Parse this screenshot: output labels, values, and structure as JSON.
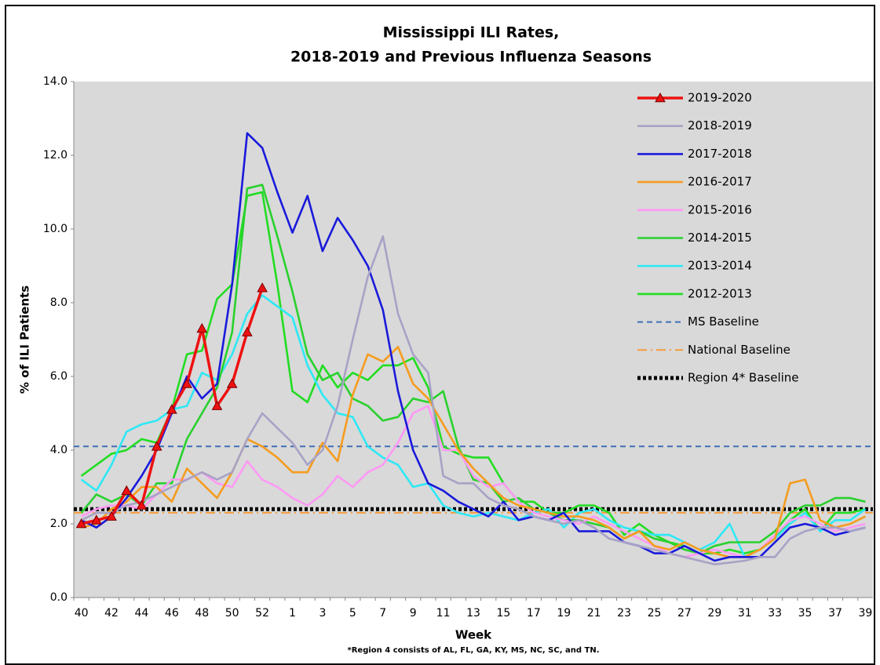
{
  "chart_data": {
    "type": "line",
    "title": [
      "Mississippi ILI Rates,",
      "2018-2019 and Previous Influenza Seasons"
    ],
    "xlabel": "Week",
    "ylabel": "% of ILI Patients",
    "footnote": "*Region 4 consists of AL, FL, GA, KY, MS, NC, SC, and TN.",
    "ylim": [
      0,
      14
    ],
    "yticks": [
      {
        "value": 0,
        "label": "0.0"
      },
      {
        "value": 2,
        "label": "2.0"
      },
      {
        "value": 4,
        "label": "4.0"
      },
      {
        "value": 6,
        "label": "6.0"
      },
      {
        "value": 8,
        "label": "8.0"
      },
      {
        "value": 10,
        "label": "10.0"
      },
      {
        "value": 12,
        "label": "12.0"
      },
      {
        "value": 14,
        "label": "14.0"
      }
    ],
    "grid": false,
    "legend": "top-right",
    "categories": [
      40,
      null,
      42,
      null,
      44,
      null,
      46,
      null,
      48,
      null,
      50,
      null,
      52,
      null,
      1,
      null,
      3,
      null,
      5,
      null,
      7,
      null,
      9,
      null,
      11,
      null,
      13,
      null,
      15,
      null,
      17,
      null,
      19,
      null,
      21,
      null,
      23,
      null,
      25,
      null,
      27,
      null,
      29,
      null,
      31,
      null,
      33,
      null,
      35,
      null,
      37,
      null,
      39
    ],
    "series": [
      {
        "name": "2019-2020",
        "color": "#ee1111",
        "marker": "triangle",
        "values": [
          2.0,
          2.1,
          2.2,
          2.9,
          2.5,
          4.1,
          5.1,
          5.8,
          7.3,
          5.2,
          5.8,
          7.2,
          8.4,
          null,
          null,
          null,
          null,
          null,
          null,
          null,
          null,
          null,
          null,
          null,
          null,
          null,
          null,
          null,
          null,
          null,
          null,
          null,
          null,
          null,
          null,
          null,
          null,
          null,
          null,
          null,
          null,
          null,
          null,
          null,
          null,
          null,
          null,
          null,
          null,
          null,
          null,
          null,
          null
        ]
      },
      {
        "name": "2018-2019",
        "color": "#a8a2c6",
        "values": [
          2.1,
          2.3,
          2.3,
          2.5,
          2.6,
          2.8,
          3.0,
          3.2,
          3.4,
          3.2,
          3.4,
          4.3,
          5.0,
          4.6,
          4.2,
          3.6,
          4.0,
          5.2,
          7.0,
          8.7,
          9.8,
          7.7,
          6.6,
          6.1,
          3.3,
          3.1,
          3.1,
          2.7,
          2.5,
          2.4,
          2.2,
          2.1,
          2.0,
          2.1,
          1.9,
          1.6,
          1.5,
          1.4,
          1.3,
          1.2,
          1.1,
          1.0,
          0.9,
          0.95,
          1.0,
          1.1,
          1.1,
          1.6,
          1.8,
          1.9,
          1.9,
          1.8,
          1.9
        ]
      },
      {
        "name": "2017-2018",
        "color": "#1a1adb",
        "values": [
          2.1,
          1.9,
          2.2,
          2.7,
          3.3,
          4.0,
          5.0,
          6.0,
          5.4,
          5.8,
          8.5,
          12.6,
          12.2,
          11.0,
          9.9,
          10.9,
          9.4,
          10.3,
          9.7,
          9.0,
          7.8,
          5.6,
          4.0,
          3.1,
          2.9,
          2.6,
          2.4,
          2.2,
          2.6,
          2.1,
          2.2,
          2.1,
          2.3,
          1.8,
          1.8,
          1.8,
          1.5,
          1.4,
          1.2,
          1.2,
          1.4,
          1.2,
          1.0,
          1.1,
          1.1,
          1.1,
          1.5,
          1.9,
          2.0,
          1.9,
          1.7,
          1.8,
          1.9
        ]
      },
      {
        "name": "2016-2017",
        "color": "#f59c1f",
        "values": [
          1.9,
          2.0,
          2.4,
          2.6,
          3.0,
          3.0,
          2.6,
          3.5,
          3.1,
          2.7,
          3.4,
          4.3,
          4.1,
          3.8,
          3.4,
          3.4,
          4.2,
          3.7,
          5.5,
          6.6,
          6.4,
          6.8,
          5.8,
          5.4,
          4.7,
          4.0,
          3.5,
          3.1,
          2.7,
          2.5,
          2.4,
          2.3,
          2.2,
          2.2,
          2.1,
          1.9,
          1.6,
          1.8,
          1.4,
          1.3,
          1.5,
          1.3,
          1.2,
          1.1,
          1.1,
          1.3,
          1.6,
          3.1,
          3.2,
          2.1,
          1.9,
          2.0,
          2.2
        ]
      },
      {
        "name": "2015-2016",
        "color": "#ff99f5",
        "values": [
          2.2,
          2.4,
          2.5,
          2.5,
          2.4,
          2.8,
          3.2,
          3.2,
          3.4,
          3.1,
          3.0,
          3.7,
          3.2,
          3.0,
          2.7,
          2.5,
          2.8,
          3.3,
          3.0,
          3.4,
          3.6,
          4.2,
          5.0,
          5.2,
          4.0,
          4.0,
          3.3,
          3.0,
          3.1,
          2.6,
          2.3,
          2.2,
          2.1,
          2.0,
          2.2,
          2.0,
          1.8,
          1.6,
          1.4,
          1.2,
          1.1,
          1.2,
          1.3,
          1.2,
          1.1,
          1.3,
          1.7,
          2.1,
          2.2,
          2.0,
          1.8,
          1.9,
          2.0
        ]
      },
      {
        "name": "2014-2015",
        "color": "#29d12e",
        "values": [
          2.3,
          2.8,
          2.6,
          2.8,
          2.5,
          3.1,
          3.1,
          4.3,
          5.0,
          5.7,
          7.2,
          11.1,
          11.2,
          9.8,
          8.3,
          6.6,
          5.9,
          6.1,
          5.4,
          5.2,
          4.8,
          4.9,
          5.4,
          5.3,
          5.6,
          4.1,
          3.2,
          3.1,
          2.6,
          2.7,
          2.4,
          2.3,
          2.1,
          2.1,
          2.0,
          1.9,
          1.6,
          1.8,
          1.6,
          1.5,
          1.3,
          1.2,
          1.4,
          1.5,
          1.5,
          1.5,
          1.8,
          2.3,
          2.5,
          2.5,
          2.7,
          2.7,
          2.6
        ]
      },
      {
        "name": "2013-2014",
        "color": "#2ee8f5",
        "values": [
          3.2,
          2.9,
          3.6,
          4.5,
          4.7,
          4.8,
          5.1,
          5.2,
          6.1,
          5.9,
          6.6,
          7.7,
          8.2,
          7.9,
          7.6,
          6.3,
          5.5,
          5.0,
          4.9,
          4.1,
          3.8,
          3.6,
          3.0,
          3.1,
          2.5,
          2.3,
          2.2,
          2.3,
          2.2,
          2.1,
          2.3,
          2.4,
          1.9,
          2.3,
          2.4,
          2.1,
          1.9,
          1.8,
          1.7,
          1.7,
          1.5,
          1.3,
          1.5,
          2.0,
          1.1,
          1.3,
          1.6,
          2.0,
          2.3,
          1.8,
          2.1,
          2.1,
          2.4
        ]
      },
      {
        "name": "2012-2013",
        "color": "#22dd22",
        "values": [
          3.3,
          3.6,
          3.9,
          4.0,
          4.3,
          4.2,
          5.1,
          6.6,
          6.7,
          8.1,
          8.5,
          10.9,
          11.0,
          8.5,
          5.6,
          5.3,
          6.3,
          5.7,
          6.1,
          5.9,
          6.3,
          6.3,
          6.5,
          5.7,
          4.1,
          3.9,
          3.8,
          3.8,
          3.1,
          2.6,
          2.6,
          2.3,
          2.3,
          2.5,
          2.5,
          2.3,
          1.7,
          2.0,
          1.7,
          1.5,
          1.4,
          1.2,
          1.2,
          1.3,
          1.2,
          1.3,
          1.6,
          2.1,
          2.4,
          1.8,
          2.3,
          2.3,
          2.4
        ]
      }
    ],
    "baselines": [
      {
        "name": "MS Baseline",
        "color": "#3f6fb5",
        "value": 4.1,
        "dash": "7,5",
        "width": 2
      },
      {
        "name": "National Baseline",
        "color": "#f59c3a",
        "value": 2.3,
        "dash": "12,5,2,5",
        "width": 2
      },
      {
        "name": "Region 4* Baseline",
        "color": "#000000",
        "value": 2.4,
        "dash": "4,3",
        "width": 5
      }
    ]
  }
}
